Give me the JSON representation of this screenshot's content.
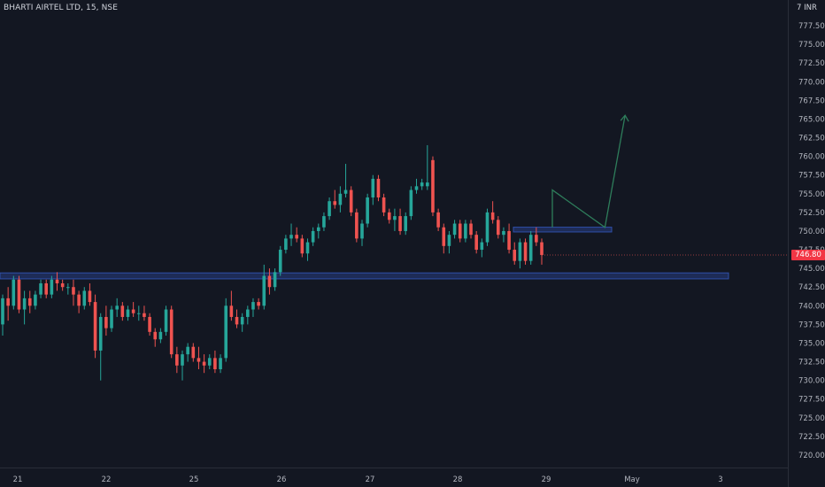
{
  "symbol": {
    "title": "BHARTI AIRTEL LTD, 15, NSE",
    "currency": "7 INR"
  },
  "last_price_label": "746.80",
  "colors": {
    "background": "#131722",
    "up": "#26a69a",
    "down": "#ef5350",
    "zone_fill": "#1e2c57",
    "zone_border": "#2f4fa8",
    "projection": "#2e7d5b",
    "axis_text": "#b2b5be"
  },
  "chart_data": {
    "type": "candlestick",
    "title": "BHARTI AIRTEL LTD, 15, NSE",
    "y_axis": {
      "ylim": [
        719,
        781
      ],
      "tick_labels": [
        "777.50",
        "775.00",
        "772.50",
        "770.00",
        "767.50",
        "765.00",
        "762.50",
        "760.00",
        "757.50",
        "755.00",
        "752.50",
        "750.00",
        "747.50",
        "745.00",
        "742.50",
        "740.00",
        "737.50",
        "735.00",
        "732.50",
        "730.00",
        "727.50",
        "725.00",
        "722.50",
        "720.00"
      ]
    },
    "x_axis": {
      "tick_labels": [
        "21",
        "22",
        "25",
        "26",
        "27",
        "28",
        "29",
        "May",
        "3"
      ]
    },
    "last_price": 746.8,
    "grid": false,
    "series": [
      {
        "name": "",
        "ohlc": [
          [
            737.5,
            741.5,
            736.0,
            741.0
          ],
          [
            741.0,
            742.5,
            738.0,
            740.0
          ],
          [
            740.0,
            744.0,
            739.5,
            743.5
          ],
          [
            743.5,
            744.0,
            739.0,
            739.5
          ],
          [
            739.5,
            742.0,
            737.5,
            741.0
          ],
          [
            741.0,
            742.0,
            739.0,
            740.0
          ],
          [
            740.0,
            742.0,
            739.5,
            741.5
          ],
          [
            741.5,
            743.5,
            741.0,
            743.0
          ],
          [
            743.0,
            743.5,
            741.0,
            741.5
          ],
          [
            741.5,
            744.0,
            741.0,
            743.5
          ],
          [
            743.5,
            744.5,
            742.0,
            743.0
          ],
          [
            743.0,
            743.5,
            742.0,
            742.5
          ],
          [
            742.5,
            743.0,
            741.5,
            742.5
          ],
          [
            742.5,
            743.5,
            740.0,
            741.5
          ],
          [
            741.5,
            742.0,
            739.0,
            740.0
          ],
          [
            740.0,
            742.5,
            739.5,
            742.0
          ],
          [
            742.0,
            743.0,
            740.0,
            740.5
          ],
          [
            740.5,
            741.5,
            733.0,
            734.0
          ],
          [
            734.0,
            739.0,
            730.0,
            738.5
          ],
          [
            738.5,
            740.0,
            736.0,
            737.0
          ],
          [
            737.0,
            740.0,
            736.5,
            739.5
          ],
          [
            739.5,
            741.0,
            738.5,
            740.0
          ],
          [
            740.0,
            740.5,
            738.0,
            738.5
          ],
          [
            738.5,
            740.0,
            738.0,
            739.5
          ],
          [
            739.5,
            740.5,
            738.5,
            739.0
          ],
          [
            739.0,
            740.0,
            738.0,
            739.0
          ],
          [
            739.0,
            740.0,
            738.0,
            738.5
          ],
          [
            738.5,
            739.0,
            736.0,
            736.5
          ],
          [
            736.5,
            737.0,
            734.5,
            735.5
          ],
          [
            735.5,
            737.0,
            735.0,
            736.5
          ],
          [
            736.5,
            740.0,
            736.0,
            739.5
          ],
          [
            739.5,
            740.0,
            733.0,
            733.5
          ],
          [
            733.5,
            734.5,
            731.0,
            732.0
          ],
          [
            732.0,
            734.0,
            730.0,
            733.5
          ],
          [
            733.5,
            735.0,
            732.5,
            734.5
          ],
          [
            734.5,
            735.0,
            732.5,
            733.0
          ],
          [
            733.0,
            734.5,
            731.5,
            732.5
          ],
          [
            732.5,
            733.5,
            731.0,
            732.0
          ],
          [
            732.0,
            733.5,
            731.5,
            733.0
          ],
          [
            733.0,
            734.0,
            731.0,
            731.5
          ],
          [
            731.5,
            733.5,
            731.0,
            733.0
          ],
          [
            733.0,
            741.0,
            732.5,
            740.0
          ],
          [
            740.0,
            742.0,
            738.0,
            738.5
          ],
          [
            738.5,
            739.5,
            737.0,
            737.5
          ],
          [
            737.5,
            739.0,
            736.5,
            738.5
          ],
          [
            738.5,
            740.0,
            737.5,
            739.5
          ],
          [
            739.5,
            741.0,
            738.5,
            740.5
          ],
          [
            740.5,
            741.0,
            739.5,
            740.0
          ],
          [
            740.0,
            745.5,
            739.5,
            744.0
          ],
          [
            744.0,
            745.0,
            741.5,
            742.5
          ],
          [
            742.5,
            745.0,
            742.0,
            744.5
          ],
          [
            744.5,
            748.0,
            744.0,
            747.5
          ],
          [
            747.5,
            749.5,
            747.0,
            749.0
          ],
          [
            749.0,
            751.0,
            748.0,
            749.5
          ],
          [
            749.5,
            750.5,
            748.5,
            749.0
          ],
          [
            749.0,
            749.5,
            746.5,
            747.0
          ],
          [
            747.0,
            749.0,
            746.0,
            748.5
          ],
          [
            748.5,
            750.5,
            748.0,
            750.0
          ],
          [
            750.0,
            751.0,
            749.0,
            750.5
          ],
          [
            750.5,
            752.5,
            750.0,
            752.0
          ],
          [
            752.0,
            754.5,
            751.5,
            754.0
          ],
          [
            754.0,
            755.5,
            753.0,
            753.5
          ],
          [
            753.5,
            756.0,
            752.5,
            755.0
          ],
          [
            755.0,
            759.0,
            754.5,
            755.5
          ],
          [
            755.5,
            756.0,
            752.0,
            752.5
          ],
          [
            752.5,
            753.0,
            748.5,
            749.0
          ],
          [
            749.0,
            751.5,
            748.0,
            751.0
          ],
          [
            751.0,
            755.0,
            750.5,
            754.5
          ],
          [
            754.5,
            757.5,
            753.5,
            757.0
          ],
          [
            757.0,
            757.5,
            754.0,
            754.5
          ],
          [
            754.5,
            755.0,
            752.0,
            752.5
          ],
          [
            752.5,
            753.0,
            751.0,
            751.5
          ],
          [
            751.5,
            753.0,
            750.0,
            752.0
          ],
          [
            752.0,
            753.0,
            749.5,
            750.0
          ],
          [
            750.0,
            752.5,
            749.5,
            752.0
          ],
          [
            752.0,
            756.0,
            751.5,
            755.5
          ],
          [
            755.5,
            757.0,
            755.0,
            756.0
          ],
          [
            756.0,
            757.0,
            755.5,
            756.5
          ],
          [
            756.0,
            761.5,
            755.5,
            756.5
          ],
          [
            759.5,
            760.0,
            752.0,
            752.5
          ],
          [
            752.5,
            753.0,
            750.0,
            750.5
          ],
          [
            750.5,
            751.0,
            747.0,
            748.0
          ],
          [
            748.0,
            750.0,
            747.0,
            749.5
          ],
          [
            749.5,
            751.5,
            749.0,
            751.0
          ],
          [
            751.0,
            751.5,
            748.5,
            749.0
          ],
          [
            749.0,
            751.5,
            748.5,
            751.0
          ],
          [
            751.0,
            751.5,
            749.0,
            749.5
          ],
          [
            749.5,
            750.0,
            747.0,
            747.5
          ],
          [
            747.5,
            749.0,
            746.5,
            748.5
          ],
          [
            748.5,
            753.0,
            748.0,
            752.5
          ],
          [
            752.5,
            754.0,
            751.0,
            751.5
          ],
          [
            751.5,
            752.0,
            749.0,
            749.5
          ],
          [
            749.5,
            750.5,
            748.5,
            750.0
          ],
          [
            750.0,
            751.0,
            747.0,
            747.5
          ],
          [
            747.5,
            748.5,
            745.5,
            746.0
          ],
          [
            746.0,
            749.0,
            745.0,
            748.5
          ],
          [
            748.5,
            749.0,
            745.5,
            746.0
          ],
          [
            746.0,
            750.0,
            745.5,
            749.5
          ],
          [
            749.5,
            750.5,
            748.0,
            748.5
          ],
          [
            748.5,
            749.0,
            745.5,
            746.8
          ]
        ]
      }
    ],
    "zones": [
      {
        "name": "support-zone",
        "from": 743.6,
        "to": 744.4
      },
      {
        "name": "resistance-zone",
        "from": 750.0,
        "to": 750.4
      }
    ],
    "projection_path": [
      {
        "x_label": "29",
        "offset": 0.0,
        "price": 750.5
      },
      {
        "x_label": "29",
        "offset": 0.0,
        "price": 755.5
      },
      {
        "x_label": "29",
        "offset": 0.6,
        "price": 750.5
      },
      {
        "x_label": "May",
        "offset": -0.15,
        "price": 765.5
      }
    ]
  }
}
